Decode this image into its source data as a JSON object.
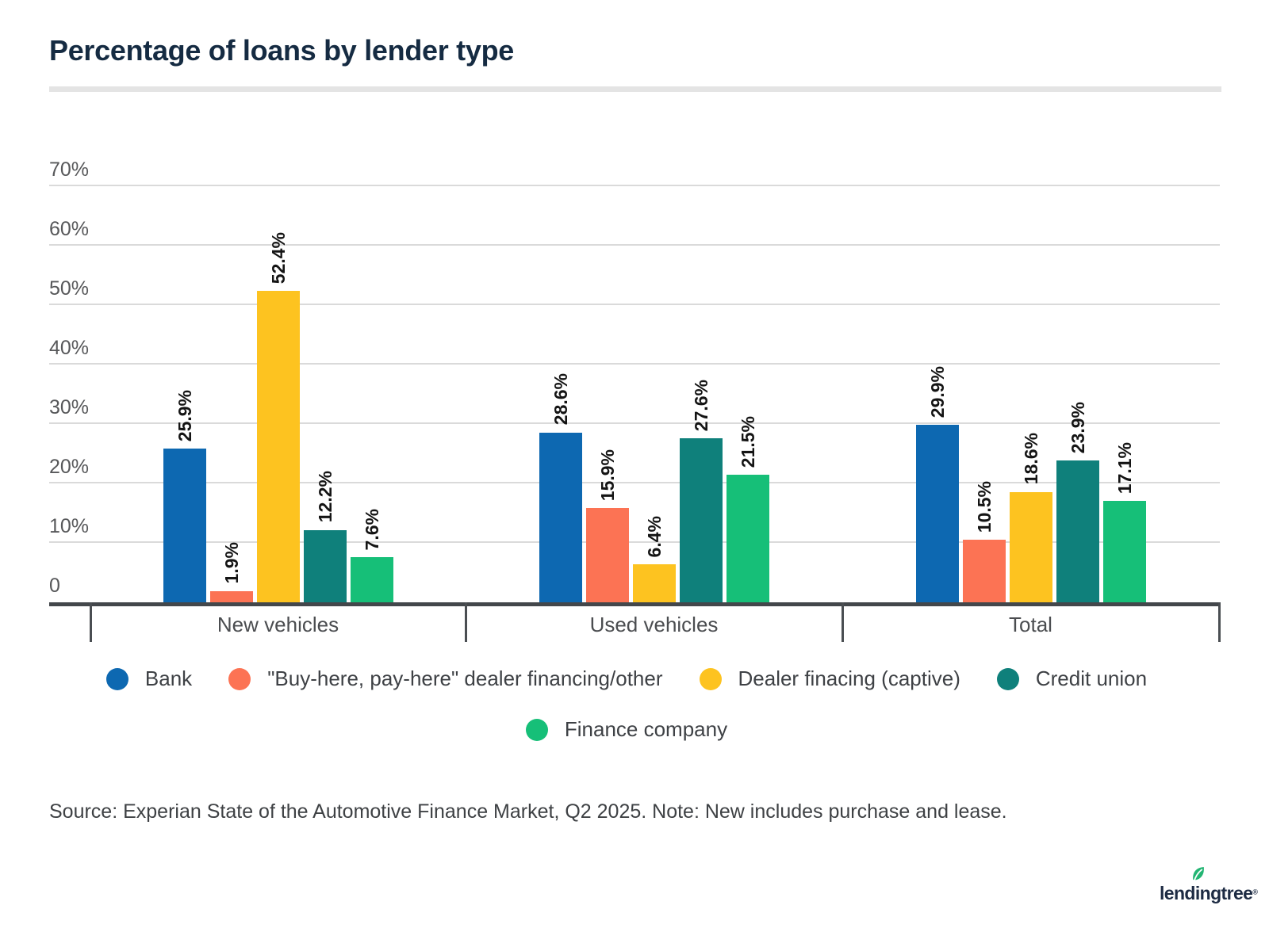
{
  "title": "Percentage of loans by lender type",
  "chart_data": {
    "type": "bar",
    "title": "Percentage of loans by lender type",
    "categories": [
      "New vehicles",
      "Used vehicles",
      "Total"
    ],
    "series": [
      {
        "name": "Bank",
        "color": "#0d68b1",
        "values": [
          25.9,
          28.6,
          29.9
        ]
      },
      {
        "name": "\"Buy-here, pay-here\" dealer financing/other",
        "color": "#fc7354",
        "values": [
          1.9,
          15.9,
          10.5
        ]
      },
      {
        "name": "Dealer finacing (captive)",
        "color": "#fdc320",
        "values": [
          52.4,
          6.4,
          18.6
        ]
      },
      {
        "name": "Credit union",
        "color": "#0f807b",
        "values": [
          12.2,
          27.6,
          23.9
        ]
      },
      {
        "name": "Finance company",
        "color": "#16bf78",
        "values": [
          7.6,
          21.5,
          17.1
        ]
      }
    ],
    "value_suffix": "%",
    "y_axis": {
      "ticks": [
        {
          "v": 70,
          "label": "70%"
        },
        {
          "v": 60,
          "label": "60%"
        },
        {
          "v": 50,
          "label": "50%"
        },
        {
          "v": 40,
          "label": "40%"
        },
        {
          "v": 30,
          "label": "30%"
        },
        {
          "v": 20,
          "label": "20%"
        },
        {
          "v": 10,
          "label": "10%"
        },
        {
          "v": 0,
          "label": "0"
        }
      ]
    },
    "ylim": [
      0,
      75
    ],
    "grid": true,
    "legend_position": "bottom",
    "bar_label_rotation": -90
  },
  "source_note": "Source: Experian State of the Automotive Finance Market, Q2 2025. Note: New includes purchase and lease.",
  "branding": {
    "logo_text": "lendingtree",
    "logo_reg": "®",
    "leaf_color": "#23b573",
    "logo_color": "#1d2b43"
  }
}
